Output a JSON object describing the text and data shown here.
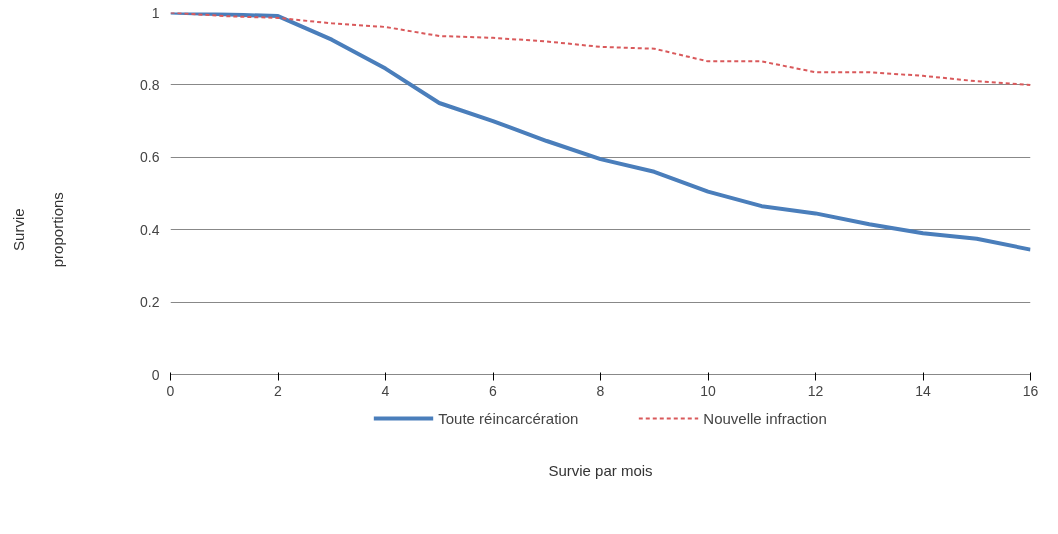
{
  "chart_data": {
    "type": "line",
    "xlabel": "Survie par mois",
    "ylabel": "Survie proportions",
    "x": [
      0,
      1,
      2,
      3,
      4,
      5,
      6,
      7,
      8,
      9,
      10,
      11,
      12,
      13,
      14,
      15,
      16
    ],
    "series": [
      {
        "name": "Toute réincarcération",
        "color": "#4a7ebb",
        "line_style": "solid",
        "values": [
          1.0,
          0.995,
          0.99,
          0.925,
          0.845,
          0.75,
          0.7,
          0.645,
          0.595,
          0.56,
          0.505,
          0.465,
          0.445,
          0.415,
          0.39,
          0.375,
          0.345
        ]
      },
      {
        "name": "Nouvelle infraction",
        "color": "#d9595b",
        "line_style": "dashed",
        "values": [
          1.0,
          0.99,
          0.985,
          0.97,
          0.96,
          0.935,
          0.93,
          0.92,
          0.905,
          0.9,
          0.865,
          0.865,
          0.835,
          0.835,
          0.825,
          0.81,
          0.8
        ]
      }
    ],
    "xlim": [
      0,
      16
    ],
    "xticks": [
      0,
      2,
      4,
      6,
      8,
      10,
      12,
      14,
      16
    ],
    "ylim": [
      0,
      1
    ],
    "yticks": [
      0,
      0.2,
      0.4,
      0.6,
      0.8,
      1
    ],
    "grid": "y",
    "legend": "bottom",
    "marker": "none"
  }
}
